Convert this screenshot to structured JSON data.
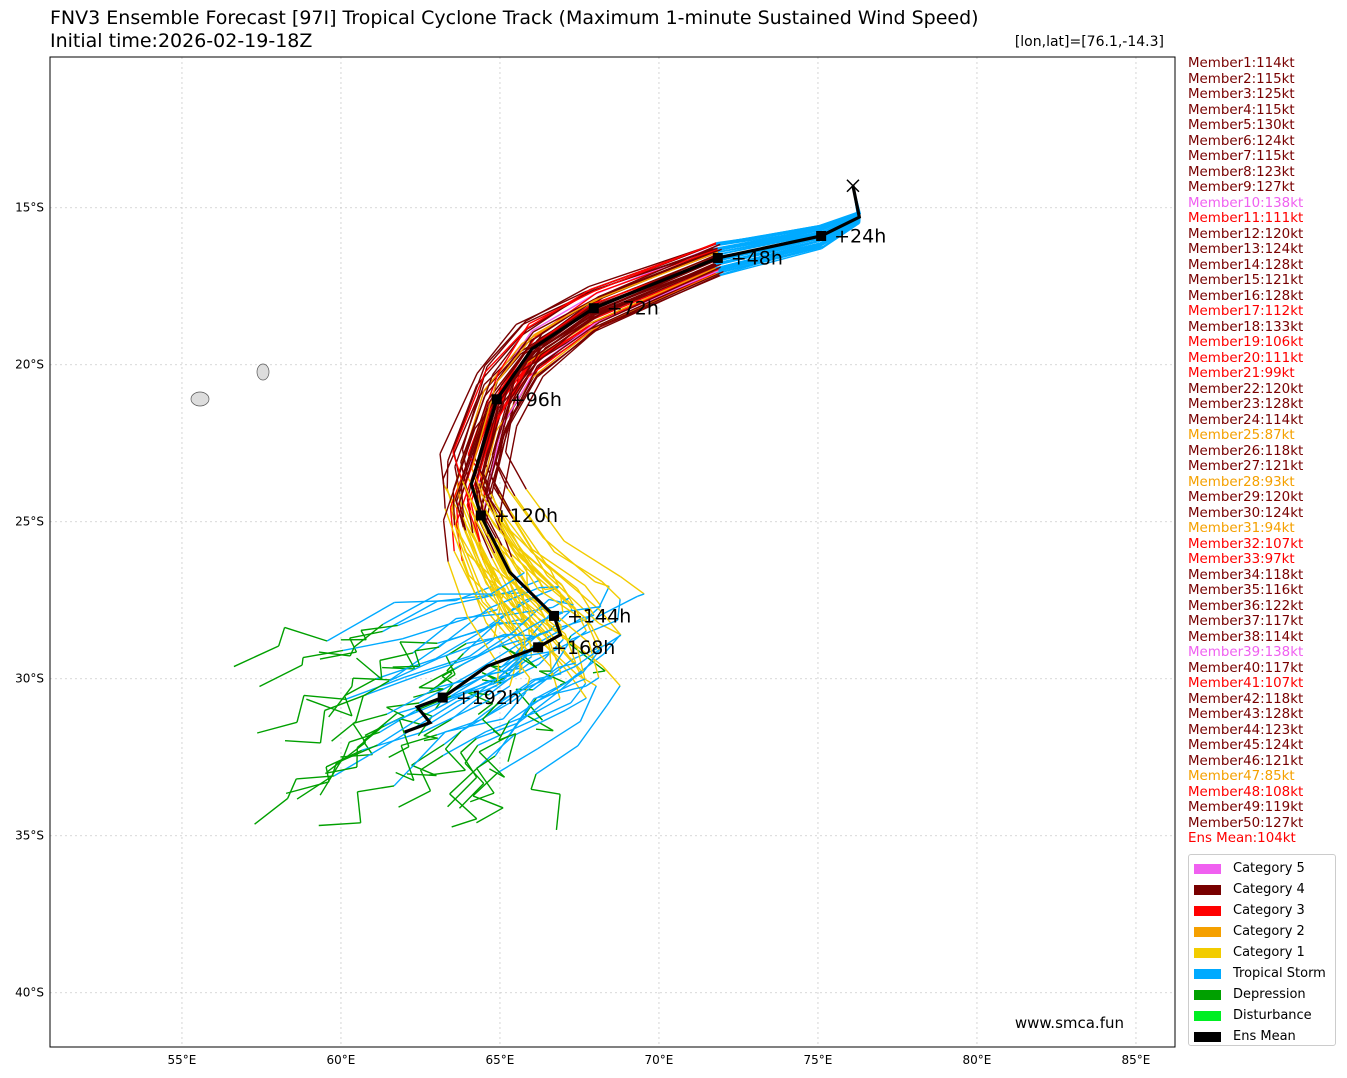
{
  "title": "FNV3 Ensemble Forecast [97I] Tropical Cyclone Track (Maximum 1-minute Sustained Wind Speed)",
  "subtitle": "Initial time:2026-02-19-18Z",
  "coord_readout": "[lon,lat]=[76.1,-14.3]",
  "watermark": "www.smca.fun",
  "colors": {
    "cat5": "#f060f0",
    "cat4": "#780000",
    "cat3": "#ff0000",
    "cat2": "#f5a000",
    "cat1": "#f2cc00",
    "ts": "#00aaff",
    "dep": "#00a000",
    "dist": "#00ee22",
    "mean": "#000000"
  },
  "legend": [
    {
      "key": "cat5",
      "label": "Category 5"
    },
    {
      "key": "cat4",
      "label": "Category 4"
    },
    {
      "key": "cat3",
      "label": "Category 3"
    },
    {
      "key": "cat2",
      "label": "Category 2"
    },
    {
      "key": "cat1",
      "label": "Category 1"
    },
    {
      "key": "ts",
      "label": "Tropical Storm"
    },
    {
      "key": "dep",
      "label": "Depression"
    },
    {
      "key": "dist",
      "label": "Disturbance"
    },
    {
      "key": "mean",
      "label": "Ens Mean"
    }
  ],
  "members": [
    {
      "label": "Member1:114kt",
      "cat": "cat4"
    },
    {
      "label": "Member2:115kt",
      "cat": "cat4"
    },
    {
      "label": "Member3:125kt",
      "cat": "cat4"
    },
    {
      "label": "Member4:115kt",
      "cat": "cat4"
    },
    {
      "label": "Member5:130kt",
      "cat": "cat4"
    },
    {
      "label": "Member6:124kt",
      "cat": "cat4"
    },
    {
      "label": "Member7:115kt",
      "cat": "cat4"
    },
    {
      "label": "Member8:123kt",
      "cat": "cat4"
    },
    {
      "label": "Member9:127kt",
      "cat": "cat4"
    },
    {
      "label": "Member10:138kt",
      "cat": "cat5"
    },
    {
      "label": "Member11:111kt",
      "cat": "cat3"
    },
    {
      "label": "Member12:120kt",
      "cat": "cat4"
    },
    {
      "label": "Member13:124kt",
      "cat": "cat4"
    },
    {
      "label": "Member14:128kt",
      "cat": "cat4"
    },
    {
      "label": "Member15:121kt",
      "cat": "cat4"
    },
    {
      "label": "Member16:128kt",
      "cat": "cat4"
    },
    {
      "label": "Member17:112kt",
      "cat": "cat3"
    },
    {
      "label": "Member18:133kt",
      "cat": "cat4"
    },
    {
      "label": "Member19:106kt",
      "cat": "cat3"
    },
    {
      "label": "Member20:111kt",
      "cat": "cat3"
    },
    {
      "label": "Member21:99kt",
      "cat": "cat3"
    },
    {
      "label": "Member22:120kt",
      "cat": "cat4"
    },
    {
      "label": "Member23:128kt",
      "cat": "cat4"
    },
    {
      "label": "Member24:114kt",
      "cat": "cat4"
    },
    {
      "label": "Member25:87kt",
      "cat": "cat2"
    },
    {
      "label": "Member26:118kt",
      "cat": "cat4"
    },
    {
      "label": "Member27:121kt",
      "cat": "cat4"
    },
    {
      "label": "Member28:93kt",
      "cat": "cat2"
    },
    {
      "label": "Member29:120kt",
      "cat": "cat4"
    },
    {
      "label": "Member30:124kt",
      "cat": "cat4"
    },
    {
      "label": "Member31:94kt",
      "cat": "cat2"
    },
    {
      "label": "Member32:107kt",
      "cat": "cat3"
    },
    {
      "label": "Member33:97kt",
      "cat": "cat3"
    },
    {
      "label": "Member34:118kt",
      "cat": "cat4"
    },
    {
      "label": "Member35:116kt",
      "cat": "cat4"
    },
    {
      "label": "Member36:122kt",
      "cat": "cat4"
    },
    {
      "label": "Member37:117kt",
      "cat": "cat4"
    },
    {
      "label": "Member38:114kt",
      "cat": "cat4"
    },
    {
      "label": "Member39:138kt",
      "cat": "cat5"
    },
    {
      "label": "Member40:117kt",
      "cat": "cat4"
    },
    {
      "label": "Member41:107kt",
      "cat": "cat3"
    },
    {
      "label": "Member42:118kt",
      "cat": "cat4"
    },
    {
      "label": "Member43:128kt",
      "cat": "cat4"
    },
    {
      "label": "Member44:123kt",
      "cat": "cat4"
    },
    {
      "label": "Member45:124kt",
      "cat": "cat4"
    },
    {
      "label": "Member46:121kt",
      "cat": "cat4"
    },
    {
      "label": "Member47:85kt",
      "cat": "cat2"
    },
    {
      "label": "Member48:108kt",
      "cat": "cat3"
    },
    {
      "label": "Member49:119kt",
      "cat": "cat4"
    },
    {
      "label": "Member50:127kt",
      "cat": "cat4"
    },
    {
      "label": "Ens Mean:104kt",
      "cat": "cat3"
    }
  ],
  "chart_data": {
    "type": "map-track",
    "lon_range": [
      50.85,
      86.2
    ],
    "lat_range": [
      -10.2,
      -41.75
    ],
    "x_ticks": [
      "55°E",
      "60°E",
      "65°E",
      "70°E",
      "75°E",
      "80°E",
      "85°E"
    ],
    "x_tick_values": [
      55,
      60,
      65,
      70,
      75,
      80,
      85
    ],
    "y_ticks": [
      "15°S",
      "20°S",
      "25°S",
      "30°S",
      "35°S",
      "40°S"
    ],
    "y_tick_values": [
      -15,
      -20,
      -25,
      -30,
      -35,
      -40
    ],
    "grid": true,
    "ens_mean_track": [
      {
        "lon": 76.1,
        "lat": -14.3,
        "label": ""
      },
      {
        "lon": 76.3,
        "lat": -15.3,
        "label": ""
      },
      {
        "lon": 75.1,
        "lat": -15.9,
        "label": "+24h"
      },
      {
        "lon": 71.85,
        "lat": -16.6,
        "label": "+48h"
      },
      {
        "lon": 67.95,
        "lat": -18.2,
        "label": "+72h"
      },
      {
        "lon": 66.0,
        "lat": -19.5,
        "label": ""
      },
      {
        "lon": 64.9,
        "lat": -21.1,
        "label": "+96h"
      },
      {
        "lon": 64.1,
        "lat": -23.8,
        "label": ""
      },
      {
        "lon": 64.4,
        "lat": -24.8,
        "label": "+120h"
      },
      {
        "lon": 65.3,
        "lat": -26.6,
        "label": ""
      },
      {
        "lon": 66.7,
        "lat": -28.0,
        "label": "+144h"
      },
      {
        "lon": 66.9,
        "lat": -28.6,
        "label": ""
      },
      {
        "lon": 66.2,
        "lat": -29.0,
        "label": "+168h"
      },
      {
        "lon": 64.6,
        "lat": -29.6,
        "label": ""
      },
      {
        "lon": 63.2,
        "lat": -30.6,
        "label": "+192h"
      },
      {
        "lon": 62.4,
        "lat": -30.9,
        "label": ""
      },
      {
        "lon": 62.8,
        "lat": -31.4,
        "label": ""
      },
      {
        "lon": 62.0,
        "lat": -31.7,
        "label": ""
      }
    ]
  }
}
